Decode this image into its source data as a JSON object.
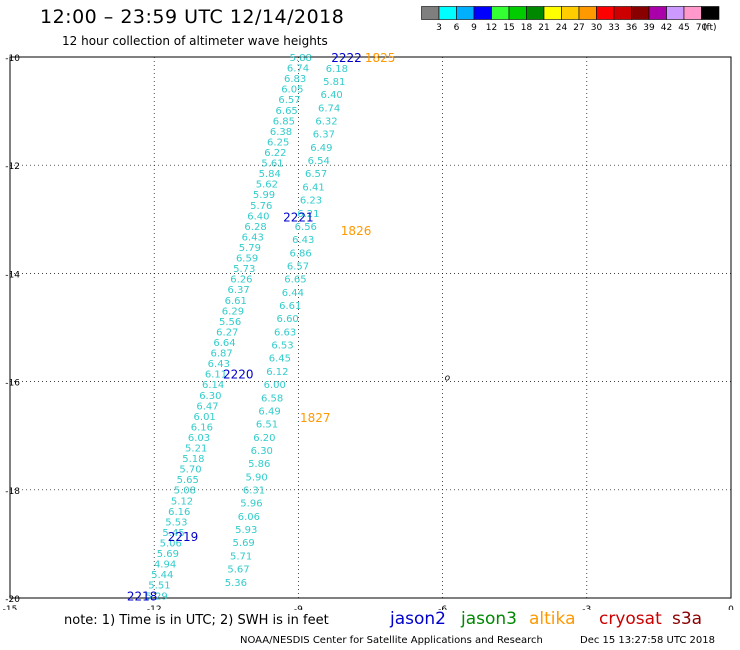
{
  "header": {
    "title": "12:00 – 23:59 UTC 12/14/2018",
    "subtitle": "12 hour collection of altimeter wave heights"
  },
  "colorbar": {
    "unit": "(ft)",
    "bins": [
      {
        "color": "#7f7f7f",
        "label": "3"
      },
      {
        "color": "#00ffff",
        "label": "6"
      },
      {
        "color": "#00b0ff",
        "label": "9"
      },
      {
        "color": "#0000ff",
        "label": "12"
      },
      {
        "color": "#33ff33",
        "label": "15"
      },
      {
        "color": "#00cc00",
        "label": "18"
      },
      {
        "color": "#008800",
        "label": "21"
      },
      {
        "color": "#ffff00",
        "label": "24"
      },
      {
        "color": "#ffcc00",
        "label": "27"
      },
      {
        "color": "#ff9900",
        "label": "30"
      },
      {
        "color": "#ff0000",
        "label": "33"
      },
      {
        "color": "#cc0000",
        "label": "36"
      },
      {
        "color": "#880000",
        "label": "39"
      },
      {
        "color": "#aa00aa",
        "label": "42"
      },
      {
        "color": "#cc99ff",
        "label": "45"
      },
      {
        "color": "#ff99cc",
        "label": "70"
      },
      {
        "color": "#000000",
        "label": ""
      }
    ]
  },
  "map": {
    "lon_ticks": [
      "-15",
      "-12",
      "-9",
      "-6",
      "-3",
      "0"
    ],
    "lat_ticks": [
      "-10",
      "-12",
      "-14",
      "-16",
      "-18",
      "-20"
    ],
    "lon_range": [
      -15,
      0
    ],
    "lat_range": [
      -20,
      -10
    ],
    "island_label": "o",
    "wave_color": "#33cccc",
    "tracks": [
      {
        "id": "jason2-2222-2221-2220",
        "values": [
          "5.88",
          "6.74",
          "6.83",
          "6.05",
          "6.57",
          "6.65",
          "6.85",
          "6.38",
          "6.25",
          "6.22",
          "5.61",
          "5.84",
          "5.62",
          "5.99",
          "5.76",
          "6.40",
          "6.28",
          "6.43",
          "5.79",
          "6.59",
          "5.73",
          "6.26",
          "6.37",
          "6.61",
          "6.29",
          "5.56",
          "6.27",
          "6.64",
          "6.87",
          "6.43",
          "6.11",
          "6.14",
          "6.30",
          "6.47",
          "6.01",
          "6.16",
          "6.03",
          "5.21",
          "5.18",
          "5.70",
          "5.65",
          "5.08",
          "5.12",
          "6.16",
          "5.53",
          "5.45",
          "5.06",
          "5.69",
          "4.94",
          "5.44",
          "5.51",
          "5.29"
        ],
        "start": [
          -8.95,
          -10.0
        ],
        "end": [
          -11.95,
          -19.95
        ]
      },
      {
        "id": "altika-1825-1826-1827",
        "values": [
          "6.18",
          "5.81",
          "6.40",
          "6.74",
          "6.32",
          "6.37",
          "6.49",
          "6.54",
          "6.57",
          "6.41",
          "6.23",
          "6.21",
          "6.56",
          "6.43",
          "6.86",
          "6.57",
          "6.65",
          "6.44",
          "6.61",
          "6.60",
          "6.63",
          "6.53",
          "6.45",
          "6.12",
          "6.00",
          "6.58",
          "6.49",
          "6.51",
          "6.20",
          "6.30",
          "5.86",
          "5.90",
          "6.31",
          "5.96",
          "6.06",
          "5.93",
          "5.69",
          "5.71",
          "5.67",
          "5.36"
        ],
        "start": [
          -8.2,
          -10.2
        ],
        "end": [
          -10.3,
          -19.7
        ]
      }
    ],
    "pass_labels": [
      {
        "text": "2222",
        "color": "#0000cc",
        "lon": -8.0,
        "lat": -10.0
      },
      {
        "text": "1825",
        "color": "#ff9900",
        "lon": -7.3,
        "lat": -10.0
      },
      {
        "text": "2221",
        "color": "#0000cc",
        "lon": -9.0,
        "lat": -12.95
      },
      {
        "text": "1826",
        "color": "#ff9900",
        "lon": -7.8,
        "lat": -13.2
      },
      {
        "text": "2220",
        "color": "#0000cc",
        "lon": -10.25,
        "lat": -15.85
      },
      {
        "text": "1827",
        "color": "#ff9900",
        "lon": -8.65,
        "lat": -16.65
      },
      {
        "text": "2219",
        "color": "#0000cc",
        "lon": -11.4,
        "lat": -18.85
      },
      {
        "text": "2218",
        "color": "#0000cc",
        "lon": -12.25,
        "lat": -19.95
      }
    ]
  },
  "footer": {
    "note": "note: 1) Time is in UTC; 2) SWH is in feet",
    "legend": [
      {
        "name": "jason2",
        "color": "#0000cc"
      },
      {
        "name": "jason3",
        "color": "#008800"
      },
      {
        "name": "altika",
        "color": "#ff9900"
      },
      {
        "name": "cryosat",
        "color": "#cc0000"
      },
      {
        "name": "s3a",
        "color": "#880000"
      }
    ],
    "credit": "NOAA/NESDIS Center for Satellite Applications and Research",
    "timestamp": "Dec 15 13:27:58 UTC 2018"
  }
}
